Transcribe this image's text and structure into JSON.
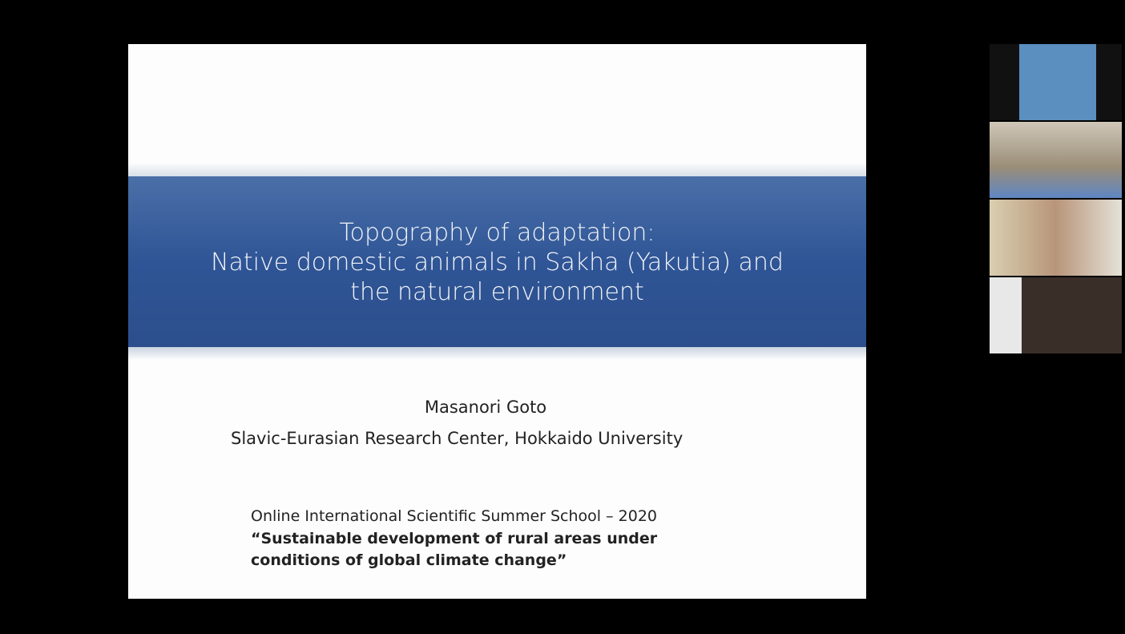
{
  "slide": {
    "title_lines": [
      "Topography of adaptation:",
      "Native domestic animals in Sakha (Yakutia) and",
      "the natural environment"
    ],
    "author": "Masanori Goto",
    "affiliation": "Slavic-Eurasian Research Center, Hokkaido University",
    "event": "Online International Scientific Summer School – 2020",
    "theme_lines": [
      "“Sustainable development of rural areas under",
      "conditions of global climate change”"
    ]
  }
}
